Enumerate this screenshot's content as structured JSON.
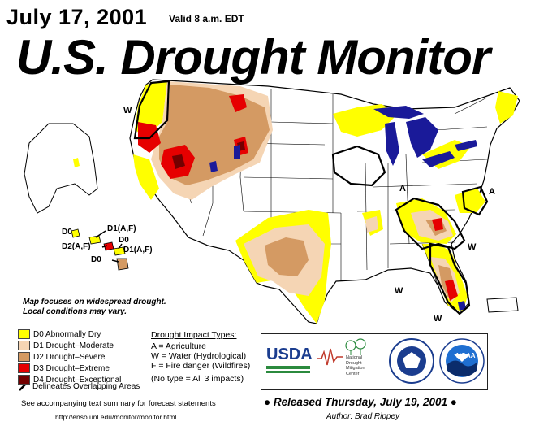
{
  "header": {
    "date": "July 17, 2001",
    "valid": "Valid 8 a.m. EDT",
    "title": "U.S. Drought Monitor"
  },
  "map_labels": {
    "w_nw": "W",
    "a_midwest": "A",
    "a_east": "A",
    "w_se1": "W",
    "w_se2": "W",
    "w_fl": "W"
  },
  "hawaii_labels": {
    "d0_a": "D0",
    "d1af_a": "D1(A,F)",
    "d0_b": "D0",
    "d2af": "D2(A,F)",
    "d1af_b": "D1(A,F)",
    "d0_c": "D0"
  },
  "notes": {
    "line1": "Map focuses on widespread drought.",
    "line2": "Local conditions may vary."
  },
  "legend": [
    {
      "label": "D0 Abnormally Dry",
      "color": "#ffff00"
    },
    {
      "label": "D1 Drought–Moderate",
      "color": "#f5d5b4"
    },
    {
      "label": "D2 Drought–Severe",
      "color": "#d49a63"
    },
    {
      "label": "D3 Drought–Extreme",
      "color": "#e60000"
    },
    {
      "label": "D4 Drought–Exceptional",
      "color": "#730000"
    }
  ],
  "legend_overlap": "Delineates Overlapping Areas",
  "impacts": {
    "title": "Drought Impact Types:",
    "a": "A = Agriculture",
    "w": "W = Water (Hydrological)",
    "f": "F = Fire danger (Wildfires)",
    "none": "(No type = All 3 impacts)"
  },
  "logos": {
    "usda": "USDA",
    "ndmc_1": "National",
    "ndmc_2": "Drought",
    "ndmc_3": "Mitigation",
    "ndmc_4": "Center",
    "noaa": "NOAA"
  },
  "footer": {
    "summary": "See accompanying text summary for forecast statements",
    "url": "http://enso.unl.edu/monitor/monitor.html",
    "released": "Released Thursday, July 19, 2001",
    "author": "Author: Brad Rippey"
  },
  "colors": {
    "water": "#1a1a99",
    "d0": "#ffff00",
    "d1": "#f5d5b4",
    "d2": "#d49a63",
    "d3": "#e60000",
    "d4": "#730000"
  }
}
